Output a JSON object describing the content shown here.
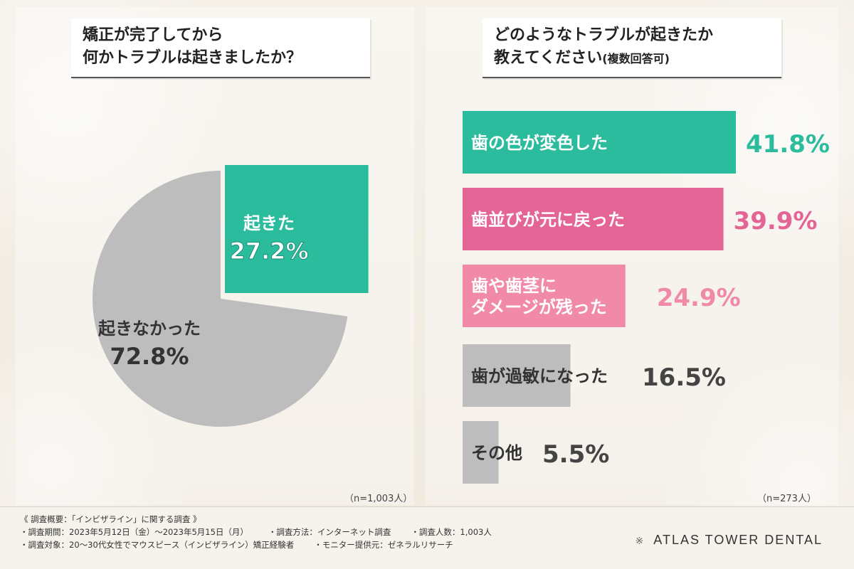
{
  "left_title": [
    "矯正が完了してから",
    "何かトラブルは起きましたか？"
  ],
  "right_title": [
    "どのようなトラブルが起きたか",
    "教えてください",
    "(複数回答可)"
  ],
  "left_n": "（n=1,003人）",
  "right_n": "（n=273人）",
  "colors": {
    "green": "#2bbb9d",
    "pink_dark": "#e46496",
    "pink_light": "#f08aa8",
    "gray": "#bdbdbd"
  },
  "chart_data": [
    {
      "type": "pie",
      "slices": [
        {
          "label": "起きた",
          "value": 27.2,
          "display": "27.2%",
          "color": "#2bbb9d"
        },
        {
          "label": "起きなかった",
          "value": 72.8,
          "display": "72.8%",
          "color": "#bdbdbd"
        }
      ]
    },
    {
      "type": "bar",
      "orientation": "horizontal",
      "categories": [
        "歯の色が変色した",
        "歯並びが元に戻った",
        "歯や歯茎にダメージが残った",
        "歯が過敏になった",
        "その他"
      ],
      "category_lines": [
        [
          "歯の色が変色した"
        ],
        [
          "歯並びが元に戻った"
        ],
        [
          "歯や歯茎に",
          "ダメージが残った"
        ],
        [
          "歯が過敏になった"
        ],
        [
          "その他"
        ]
      ],
      "values": [
        41.8,
        39.9,
        24.9,
        16.5,
        5.5
      ],
      "value_labels": [
        "41.8%",
        "39.9%",
        "24.9%",
        "16.5%",
        "5.5%"
      ],
      "colors": [
        "#2bbb9d",
        "#e46496",
        "#f08aa8",
        "#bdbdbd",
        "#bdbdbd"
      ],
      "label_colors": [
        "#ffffff",
        "#ffffff",
        "#ffffff",
        "#333333",
        "#333333"
      ],
      "value_colors": [
        "#2bbb9d",
        "#e46496",
        "#f08aa8",
        "#444444",
        "#444444"
      ],
      "xlim": [
        0,
        50
      ]
    }
  ],
  "footer": {
    "line1": "《 調査概要：「インビザライン」に関する調査 》",
    "line2": [
      "・調査期間：2023年5月12日（金）～2023年5月15日（月）",
      "・調査方法：インターネット調査",
      "・調査人数：1,003人"
    ],
    "line3": [
      "・調査対象：20～30代女性でマウスピース（インビザライン）矯正経験者",
      "・モニター提供元：ゼネラルリサーチ"
    ],
    "brand": "ATLAS TOWER DENTAL",
    "brand_mark": "※"
  }
}
